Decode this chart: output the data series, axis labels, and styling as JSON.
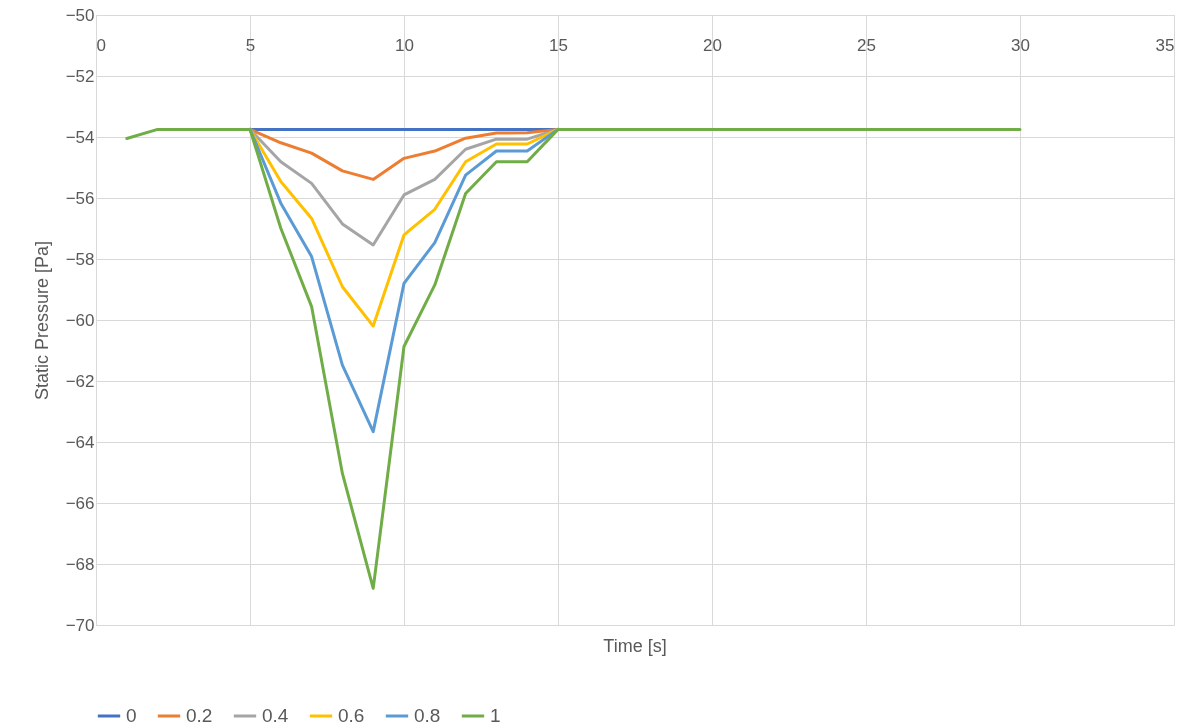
{
  "chart_data": {
    "type": "line",
    "xlabel": "Time [s]",
    "ylabel": "Static Pressure [Pa]",
    "x": [
      1,
      2,
      3,
      4,
      5,
      6,
      7,
      8,
      9,
      10,
      11,
      12,
      13,
      14,
      15,
      16,
      17,
      18,
      19,
      20,
      21,
      22,
      23,
      24,
      25,
      26,
      27,
      28,
      29,
      30
    ],
    "series": [
      {
        "name": "0",
        "color": "#4472c4",
        "values": [
          null,
          null,
          null,
          null,
          -53.75,
          -53.75,
          -53.75,
          -53.75,
          -53.75,
          -53.75,
          -53.75,
          -53.75,
          -53.75,
          -53.75,
          -53.75,
          null,
          null,
          null,
          null,
          null,
          null,
          null,
          null,
          null,
          null,
          null,
          null,
          null,
          null,
          null
        ]
      },
      {
        "name": "0.2",
        "color": "#ed7d31",
        "values": [
          null,
          null,
          null,
          null,
          -53.75,
          -54.19,
          -54.53,
          -55.11,
          -55.39,
          -54.7,
          -54.46,
          -54.04,
          -53.87,
          -53.86,
          -53.75,
          null,
          null,
          null,
          null,
          null,
          null,
          null,
          null,
          null,
          null,
          null,
          null,
          null,
          null,
          null
        ]
      },
      {
        "name": "0.4",
        "color": "#a5a5a5",
        "values": [
          null,
          null,
          null,
          null,
          -53.75,
          -54.81,
          -55.52,
          -56.85,
          -57.54,
          -55.9,
          -55.39,
          -54.4,
          -54.07,
          -54.07,
          -53.75,
          null,
          null,
          null,
          null,
          null,
          null,
          null,
          null,
          null,
          null,
          null,
          null,
          null,
          null,
          null
        ]
      },
      {
        "name": "0.6",
        "color": "#ffc000",
        "values": [
          null,
          null,
          null,
          null,
          -53.75,
          -55.46,
          -56.67,
          -58.91,
          -60.2,
          -57.21,
          -56.37,
          -54.81,
          -54.23,
          -54.23,
          -53.75,
          null,
          null,
          null,
          null,
          null,
          null,
          null,
          null,
          null,
          null,
          null,
          null,
          null,
          null,
          null
        ]
      },
      {
        "name": "0.8",
        "color": "#5b9bd5",
        "values": [
          null,
          null,
          null,
          null,
          -53.75,
          -56.17,
          -57.92,
          -61.48,
          -63.66,
          -58.8,
          -57.46,
          -55.25,
          -54.46,
          -54.46,
          -53.75,
          null,
          null,
          null,
          null,
          null,
          null,
          null,
          null,
          null,
          null,
          null,
          null,
          null,
          null,
          null
        ]
      },
      {
        "name": "1",
        "color": "#70ad47",
        "values": [
          -54.05,
          -53.75,
          -53.75,
          -53.75,
          -53.75,
          -56.99,
          -59.56,
          -65.03,
          -68.8,
          -60.87,
          -58.85,
          -55.85,
          -54.81,
          -54.81,
          -53.75,
          -53.75,
          -53.75,
          -53.75,
          -53.75,
          -53.75,
          -53.75,
          -53.75,
          -53.75,
          -53.75,
          -53.75,
          -53.75,
          -53.75,
          -53.75,
          -53.75,
          -53.75
        ]
      }
    ],
    "xlim": [
      0,
      35
    ],
    "xticks": [
      0,
      5,
      10,
      15,
      20,
      25,
      30,
      35
    ],
    "ylim": [
      -70,
      -50
    ],
    "yticks": [
      -70,
      -68,
      -66,
      -64,
      -62,
      -60,
      -58,
      -56,
      -54,
      -52,
      -50
    ],
    "grid": true,
    "legend": "bottom",
    "marker": "none",
    "line_style": "solid"
  }
}
